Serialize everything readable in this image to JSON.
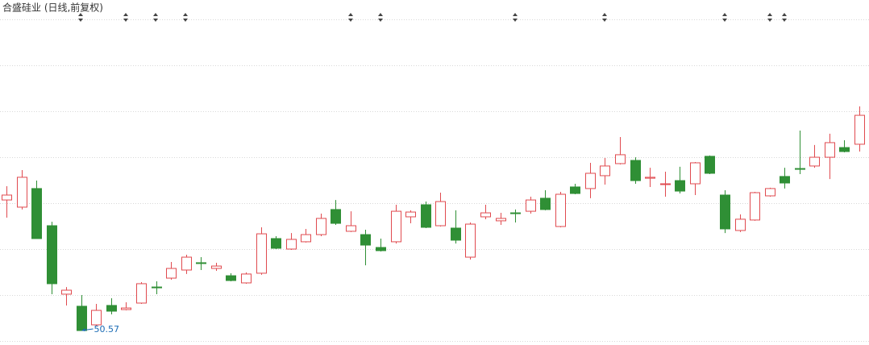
{
  "chart_data": {
    "type": "candlestick",
    "title": "合盛硅业 (日线,前复权)",
    "open": [
      60.41,
      59.87,
      61.27,
      58.47,
      53.31,
      52.4,
      51.0,
      52.46,
      52.15,
      52.64,
      53.85,
      54.52,
      55.13,
      55.68,
      55.25,
      54.7,
      54.16,
      54.89,
      57.5,
      56.71,
      57.26,
      57.8,
      59.69,
      58.05,
      57.8,
      56.83,
      57.26,
      59.14,
      60.05,
      58.47,
      58.29,
      56.1,
      59.14,
      58.84,
      59.44,
      59.56,
      60.54,
      58.41,
      61.39,
      61.27,
      62.24,
      63.15,
      63.39,
      62.05,
      61.57,
      61.87,
      61.63,
      63.7,
      60.78,
      58.11,
      58.9,
      60.72,
      62.18,
      62.78,
      62.97,
      63.63,
      64.36,
      64.61
    ],
    "high": [
      61.45,
      62.66,
      61.87,
      58.77,
      53.85,
      53.25,
      52.58,
      53.0,
      52.7,
      54.22,
      54.28,
      55.74,
      56.28,
      56.1,
      55.68,
      54.89,
      54.95,
      58.35,
      57.68,
      57.92,
      58.23,
      59.38,
      60.41,
      59.56,
      58.17,
      57.5,
      60.05,
      59.63,
      60.29,
      60.96,
      59.63,
      58.71,
      60.05,
      59.44,
      59.69,
      60.66,
      61.14,
      61.02,
      61.63,
      63.21,
      63.57,
      65.15,
      63.63,
      62.84,
      62.54,
      62.91,
      63.27,
      63.76,
      61.14,
      59.32,
      61.02,
      61.33,
      62.84,
      65.64,
      64.55,
      65.4,
      64.91,
      67.46
    ],
    "low": [
      59.08,
      59.69,
      57.5,
      53.31,
      52.46,
      50.57,
      50.88,
      51.79,
      52.09,
      52.58,
      53.31,
      54.4,
      54.83,
      55.13,
      55.07,
      54.28,
      54.1,
      54.77,
      56.71,
      56.65,
      57.2,
      57.68,
      58.53,
      57.99,
      55.49,
      56.53,
      57.13,
      58.65,
      58.29,
      58.41,
      57.13,
      55.92,
      58.96,
      58.53,
      58.71,
      59.38,
      59.63,
      58.35,
      60.84,
      60.54,
      61.57,
      63.09,
      61.63,
      61.39,
      60.66,
      60.9,
      60.78,
      62.36,
      57.92,
      57.99,
      58.84,
      60.66,
      61.27,
      62.36,
      62.84,
      61.99,
      64.0,
      64.06
    ],
    "close": [
      60.78,
      62.12,
      57.5,
      54.1,
      53.61,
      50.57,
      52.09,
      52.03,
      52.27,
      54.1,
      53.79,
      55.25,
      56.1,
      55.62,
      55.43,
      54.34,
      54.83,
      57.86,
      56.77,
      57.44,
      57.8,
      59.02,
      58.65,
      58.47,
      57.01,
      56.59,
      59.56,
      59.5,
      58.35,
      60.29,
      57.38,
      58.59,
      59.44,
      59.02,
      59.38,
      60.41,
      59.69,
      60.84,
      60.9,
      62.42,
      62.97,
      63.82,
      61.87,
      62.12,
      61.63,
      61.08,
      63.21,
      62.42,
      58.23,
      58.96,
      60.96,
      61.27,
      61.69,
      62.72,
      63.63,
      64.73,
      64.06,
      66.79
    ],
    "up_color": "#e04a4f",
    "down_color": "#2f8f35",
    "ylim": [
      49.48,
      75.48
    ]
  }
}
